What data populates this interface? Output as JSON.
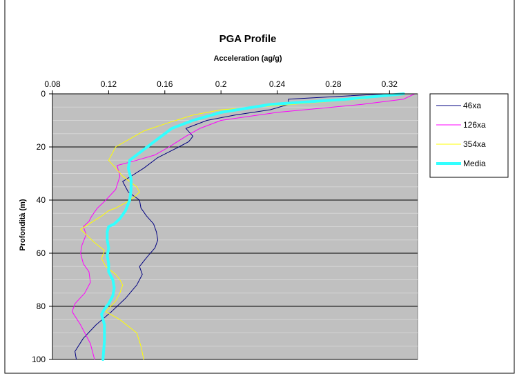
{
  "chart_data": {
    "type": "line",
    "title": "PGA Profile",
    "xlabel": "Acceleration (ag/g)",
    "ylabel": "Profondità (m)",
    "xlim": [
      0.08,
      0.34
    ],
    "ylim": [
      0,
      100
    ],
    "y_inverted": true,
    "x_axis_position": "top",
    "x_ticks": [
      "0.08",
      "0.12",
      "0.16",
      "0.2",
      "0.24",
      "0.28",
      "0.32"
    ],
    "y_ticks": [
      "0",
      "20",
      "40",
      "60",
      "80",
      "100"
    ],
    "grid": "horizontal",
    "legend_position": "right",
    "plot_background": "#c0c0c0",
    "series": [
      {
        "name": "46xa",
        "color": "#000080",
        "width": 1,
        "x": [
          0.317,
          0.248,
          0.248,
          0.235,
          0.21,
          0.19,
          0.175,
          0.18,
          0.177,
          0.17,
          0.155,
          0.145,
          0.13,
          0.134,
          0.142,
          0.143,
          0.147,
          0.152,
          0.154,
          0.155,
          0.153,
          0.148,
          0.145,
          0.142,
          0.144,
          0.142,
          0.14,
          0.132,
          0.122,
          0.111,
          0.102,
          0.096,
          0.097
        ],
        "y": [
          0,
          2,
          4,
          6,
          8,
          10,
          13,
          16,
          18,
          20,
          24,
          28,
          33,
          37,
          40,
          43,
          46,
          49,
          52,
          55,
          58,
          61,
          63,
          65,
          68,
          70,
          72,
          77,
          82,
          87,
          92,
          97,
          100
        ]
      },
      {
        "name": "126xa",
        "color": "#ff00ff",
        "width": 1,
        "x": [
          0.338,
          0.33,
          0.3,
          0.24,
          0.2,
          0.185,
          0.175,
          0.163,
          0.153,
          0.14,
          0.126,
          0.128,
          0.125,
          0.118,
          0.112,
          0.108,
          0.107,
          0.106,
          0.102,
          0.104,
          0.101,
          0.1,
          0.102,
          0.106,
          0.107,
          0.103,
          0.096,
          0.094,
          0.1,
          0.107,
          0.11
        ],
        "y": [
          0,
          2,
          4,
          7,
          10,
          13,
          16,
          20,
          23,
          25,
          27,
          31,
          36,
          40,
          43,
          46,
          47,
          48,
          50,
          53,
          57,
          60,
          64,
          67,
          71,
          75,
          79,
          82,
          87,
          94,
          100
        ]
      },
      {
        "name": "354xa",
        "color": "#ffff00",
        "width": 1,
        "x": [
          0.33,
          0.3,
          0.2,
          0.18,
          0.162,
          0.145,
          0.135,
          0.125,
          0.12,
          0.13,
          0.14,
          0.142,
          0.138,
          0.132,
          0.125,
          0.12,
          0.115,
          0.1,
          0.11,
          0.117,
          0.115,
          0.118,
          0.125,
          0.128,
          0.13,
          0.128,
          0.125,
          0.118,
          0.128,
          0.14,
          0.143,
          0.145
        ],
        "y": [
          0,
          2,
          6,
          8,
          11,
          14,
          17,
          20,
          25,
          31,
          35,
          37,
          39,
          41,
          43,
          44,
          46,
          51,
          56,
          59,
          62,
          65,
          68,
          70,
          72,
          75,
          78,
          82,
          85,
          90,
          95,
          100
        ]
      },
      {
        "name": "Media",
        "color": "#33ffff",
        "width": 4,
        "x": [
          0.33,
          0.29,
          0.235,
          0.2,
          0.18,
          0.165,
          0.155,
          0.145,
          0.135,
          0.134,
          0.136,
          0.136,
          0.135,
          0.132,
          0.128,
          0.124,
          0.12,
          0.119,
          0.119,
          0.12,
          0.119,
          0.12,
          0.12,
          0.123,
          0.124,
          0.123,
          0.12,
          0.117,
          0.115,
          0.117,
          0.117,
          0.116
        ],
        "y": [
          0,
          2,
          4,
          7,
          10,
          13,
          17,
          21,
          25,
          28,
          32,
          36,
          40,
          44,
          47,
          49,
          50,
          52,
          55,
          58,
          61,
          64,
          67,
          70,
          73,
          76,
          79,
          81,
          83,
          87,
          93,
          100
        ]
      }
    ]
  }
}
